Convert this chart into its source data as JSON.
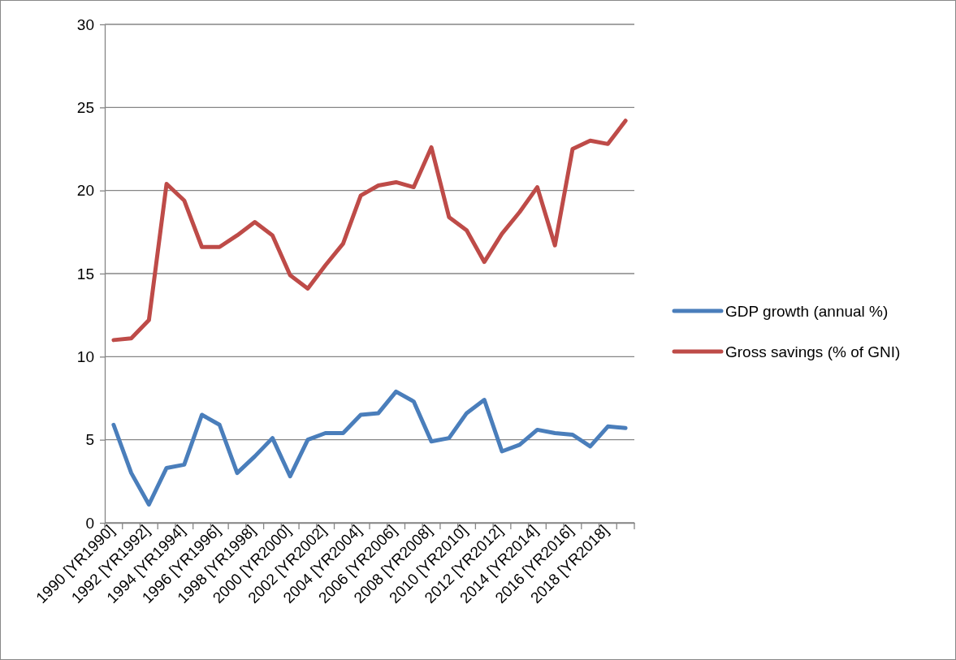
{
  "chart_data": {
    "type": "line",
    "categories": [
      "1990 [YR1990]",
      null,
      "1992 [YR1992]",
      null,
      "1994 [YR1994]",
      null,
      "1996 [YR1996]",
      null,
      "1998 [YR1998]",
      null,
      "2000 [YR2000]",
      null,
      "2002 [YR2002]",
      null,
      "2004 [YR2004]",
      null,
      "2006 [YR2006]",
      null,
      "2008 [YR2008]",
      null,
      "2010 [YR2010]",
      null,
      "2012 [YR2012]",
      null,
      "2014 [YR2014]",
      null,
      "2016 [YR2016]",
      null,
      "2018 [YR2018]",
      null
    ],
    "series": [
      {
        "name": "GDP growth (annual %)",
        "color": "#4a7ebb",
        "values": [
          5.9,
          3.0,
          1.1,
          3.3,
          3.5,
          6.5,
          5.9,
          3.0,
          4.0,
          5.1,
          2.8,
          5.0,
          5.4,
          5.4,
          6.5,
          6.6,
          7.9,
          7.3,
          4.9,
          5.1,
          6.6,
          7.4,
          4.3,
          4.7,
          5.6,
          5.4,
          5.3,
          4.6,
          5.8,
          5.7
        ]
      },
      {
        "name": "Gross savings (% of GNI)",
        "color": "#be4b48",
        "values": [
          11.0,
          11.1,
          12.2,
          20.4,
          19.4,
          16.6,
          16.6,
          17.3,
          18.1,
          17.3,
          14.9,
          14.1,
          15.5,
          16.8,
          19.7,
          20.3,
          20.5,
          20.2,
          22.6,
          18.4,
          17.6,
          15.7,
          17.4,
          18.7,
          20.2,
          16.7,
          22.5,
          23.0,
          22.8,
          24.2
        ]
      }
    ],
    "ylim": [
      0,
      30
    ],
    "yticks": [
      0,
      5,
      10,
      15,
      20,
      25,
      30
    ],
    "grid": "y",
    "legend": "right",
    "marker": "none",
    "line_style": "solid"
  }
}
